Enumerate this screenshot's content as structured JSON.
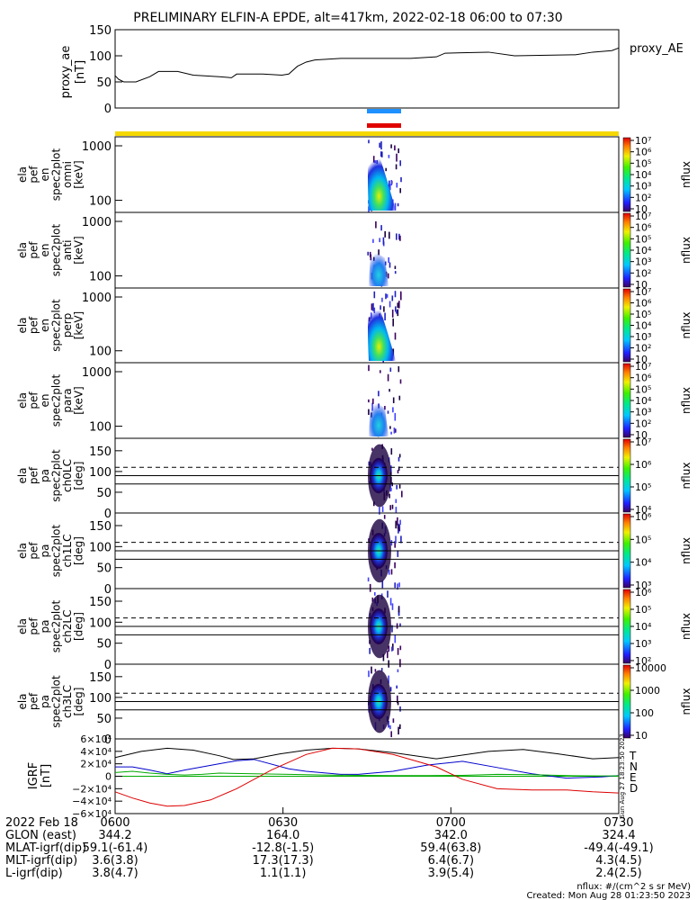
{
  "title": "PRELIMINARY ELFIN-A EPDE, alt=417km, 2022-02-18 06:00 to 07:30",
  "colors": {
    "ae_line": "#000000",
    "bar_blue": "#1e90ff",
    "bar_red": "#e00000",
    "bar_yellow": "#f5d800",
    "T": "#000000",
    "N": "#0000cc",
    "E": "#00aa00",
    "D": "#dd0000"
  },
  "chart_data": [
    {
      "type": "line",
      "panel": "proxy_ae",
      "ylabel_lines": [
        "proxy_ae",
        "[nT]"
      ],
      "legend": "proxy_AE",
      "ylim": [
        0,
        150
      ],
      "yticks": [
        "0",
        "50",
        "100",
        "150"
      ],
      "series": [
        {
          "name": "proxy_AE",
          "points": [
            [
              0,
              62
            ],
            [
              2,
              55
            ],
            [
              5,
              50
            ],
            [
              12,
              50
            ],
            [
              20,
              60
            ],
            [
              25,
              70
            ],
            [
              36,
              70
            ],
            [
              45,
              63
            ],
            [
              60,
              60
            ],
            [
              67,
              58
            ],
            [
              70,
              65
            ],
            [
              85,
              65
            ],
            [
              96,
              63
            ],
            [
              100,
              65
            ],
            [
              105,
              80
            ],
            [
              110,
              88
            ],
            [
              115,
              92
            ],
            [
              130,
              95
            ],
            [
              170,
              95
            ],
            [
              185,
              98
            ],
            [
              190,
              105
            ],
            [
              215,
              107
            ],
            [
              230,
              100
            ],
            [
              265,
              102
            ],
            [
              275,
              107
            ],
            [
              286,
              110
            ],
            [
              290,
              115
            ]
          ]
        }
      ]
    },
    {
      "type": "heatmap",
      "panel": "omni",
      "ylabel_lines": [
        "ela",
        "pef",
        "en",
        "spec2plot",
        "omni",
        "[keV]"
      ],
      "yscale": "log",
      "ylim": [
        60,
        1000
      ],
      "yticks": [
        "100",
        "1000"
      ],
      "zlabel": "nflux",
      "zticks": [
        "10",
        "10²",
        "10³",
        "10⁴",
        "10⁵",
        "10⁶",
        "10⁷"
      ]
    },
    {
      "type": "heatmap",
      "panel": "anti",
      "ylabel_lines": [
        "ela",
        "pef",
        "en",
        "spec2plot",
        "anti",
        "[keV]"
      ],
      "yscale": "log",
      "ylim": [
        60,
        1000
      ],
      "yticks": [
        "100",
        "1000"
      ],
      "zlabel": "nflux",
      "zticks": [
        "10",
        "10²",
        "10³",
        "10⁴",
        "10⁵",
        "10⁶",
        "10⁷"
      ]
    },
    {
      "type": "heatmap",
      "panel": "perp",
      "ylabel_lines": [
        "ela",
        "pef",
        "en",
        "spec2plot",
        "perp",
        "[keV]"
      ],
      "yscale": "log",
      "ylim": [
        60,
        1000
      ],
      "yticks": [
        "100",
        "1000"
      ],
      "zlabel": "nflux",
      "zticks": [
        "10",
        "10²",
        "10³",
        "10⁴",
        "10⁵",
        "10⁶",
        "10⁷"
      ]
    },
    {
      "type": "heatmap",
      "panel": "para",
      "ylabel_lines": [
        "ela",
        "pef",
        "en",
        "spec2plot",
        "para",
        "[keV]"
      ],
      "yscale": "log",
      "ylim": [
        60,
        1000
      ],
      "yticks": [
        "100",
        "1000"
      ],
      "zlabel": "nflux",
      "zticks": [
        "10",
        "10²",
        "10³",
        "10⁴",
        "10⁵",
        "10⁶",
        "10⁷"
      ]
    },
    {
      "type": "heatmap",
      "panel": "ch0LC",
      "ylabel_lines": [
        "ela",
        "pef",
        "pa",
        "spec2plot",
        "ch0LC",
        "[deg]"
      ],
      "yscale": "linear",
      "ylim": [
        0,
        180
      ],
      "yticks": [
        "0",
        "50",
        "100",
        "150"
      ],
      "hlines_solid": [
        70,
        90
      ],
      "hlines_dashed": [
        110
      ],
      "zlabel": "nflux",
      "zticks": [
        "10⁴",
        "10⁵",
        "10⁶",
        "10⁷"
      ]
    },
    {
      "type": "heatmap",
      "panel": "ch1LC",
      "ylabel_lines": [
        "ela",
        "pef",
        "pa",
        "spec2plot",
        "ch1LC",
        "[deg]"
      ],
      "yscale": "linear",
      "ylim": [
        0,
        180
      ],
      "yticks": [
        "0",
        "50",
        "100",
        "150"
      ],
      "hlines_solid": [
        70,
        90
      ],
      "hlines_dashed": [
        110
      ],
      "zlabel": "nflux",
      "zticks": [
        "10³",
        "10⁴",
        "10⁵",
        "10⁶"
      ]
    },
    {
      "type": "heatmap",
      "panel": "ch2LC",
      "ylabel_lines": [
        "ela",
        "pef",
        "pa",
        "spec2plot",
        "ch2LC",
        "[deg]"
      ],
      "yscale": "linear",
      "ylim": [
        0,
        180
      ],
      "yticks": [
        "0",
        "50",
        "100",
        "150"
      ],
      "hlines_solid": [
        70,
        90
      ],
      "hlines_dashed": [
        110
      ],
      "zlabel": "nflux",
      "zticks": [
        "10²",
        "10³",
        "10⁴",
        "10⁵",
        "10⁶"
      ]
    },
    {
      "type": "heatmap",
      "panel": "ch3LC",
      "ylabel_lines": [
        "ela",
        "pef",
        "pa",
        "spec2plot",
        "ch3LC",
        "[deg]"
      ],
      "yscale": "linear",
      "ylim": [
        0,
        180
      ],
      "yticks": [
        "0",
        "50",
        "100",
        "150"
      ],
      "hlines_solid": [
        70,
        90
      ],
      "hlines_dashed": [
        110
      ],
      "zlabel": "nflux",
      "zticks": [
        "10",
        "100",
        "1000",
        "10000"
      ]
    },
    {
      "type": "line",
      "panel": "igrf",
      "ylabel_lines": [
        "IGRF",
        "[nT]"
      ],
      "ylim": [
        -60000,
        60000
      ],
      "yticks": [
        "6×10⁴",
        "4×10⁴",
        "2×10⁴",
        "0",
        "−2×10⁴",
        "−4×10⁴",
        "−6×10⁴"
      ],
      "side_label": "Sun Aug 27 18:23:50 2023",
      "series": [
        {
          "name": "T",
          "points": [
            [
              0,
              30000
            ],
            [
              15,
              40000
            ],
            [
              30,
              45000
            ],
            [
              45,
              42000
            ],
            [
              60,
              33000
            ],
            [
              68,
              27000
            ],
            [
              80,
              28000
            ],
            [
              95,
              36000
            ],
            [
              110,
              42000
            ],
            [
              125,
              45000
            ],
            [
              140,
              44000
            ],
            [
              160,
              38000
            ],
            [
              185,
              28000
            ],
            [
              215,
              40000
            ],
            [
              235,
              43000
            ],
            [
              255,
              36000
            ],
            [
              275,
              28000
            ],
            [
              290,
              30000
            ]
          ]
        },
        {
          "name": "N",
          "points": [
            [
              0,
              15000
            ],
            [
              10,
              15000
            ],
            [
              20,
              10000
            ],
            [
              30,
              4000
            ],
            [
              40,
              10000
            ],
            [
              50,
              15000
            ],
            [
              60,
              20000
            ],
            [
              70,
              25000
            ],
            [
              80,
              27000
            ],
            [
              100,
              12000
            ],
            [
              110,
              8000
            ],
            [
              130,
              3000
            ],
            [
              140,
              3000
            ],
            [
              160,
              8000
            ],
            [
              180,
              18000
            ],
            [
              200,
              24000
            ],
            [
              220,
              14000
            ],
            [
              240,
              4000
            ],
            [
              260,
              -3000
            ],
            [
              280,
              -1000
            ],
            [
              290,
              1000
            ]
          ]
        },
        {
          "name": "E",
          "points": [
            [
              0,
              6000
            ],
            [
              10,
              8000
            ],
            [
              20,
              5000
            ],
            [
              30,
              3000
            ],
            [
              40,
              2000
            ],
            [
              50,
              3000
            ],
            [
              60,
              5000
            ],
            [
              80,
              4000
            ],
            [
              100,
              3000
            ],
            [
              120,
              2000
            ],
            [
              140,
              1500
            ],
            [
              160,
              1000
            ],
            [
              180,
              1000
            ],
            [
              200,
              1500
            ],
            [
              220,
              3000
            ],
            [
              240,
              2500
            ],
            [
              260,
              1000
            ],
            [
              280,
              500
            ],
            [
              290,
              500
            ]
          ]
        },
        {
          "name": "D",
          "points": [
            [
              0,
              -25000
            ],
            [
              10,
              -35000
            ],
            [
              20,
              -43000
            ],
            [
              30,
              -48000
            ],
            [
              40,
              -47000
            ],
            [
              55,
              -38000
            ],
            [
              70,
              -20000
            ],
            [
              90,
              10000
            ],
            [
              110,
              35000
            ],
            [
              125,
              45000
            ],
            [
              140,
              44000
            ],
            [
              160,
              35000
            ],
            [
              185,
              15000
            ],
            [
              200,
              -5000
            ],
            [
              220,
              -20000
            ],
            [
              240,
              -22000
            ],
            [
              260,
              -22000
            ],
            [
              275,
              -25000
            ],
            [
              290,
              -27000
            ]
          ]
        }
      ]
    }
  ],
  "axis_table": {
    "date": "2022 Feb 18",
    "ticks": [
      "0600",
      "0630",
      "0700",
      "0730"
    ],
    "rows": [
      {
        "label": "GLON (east)",
        "values": [
          "344.2",
          "164.0",
          "342.0",
          "324.4"
        ]
      },
      {
        "label": "MLAT-igrf(dip)",
        "values": [
          "59.1(-61.4)",
          "-12.8(-1.5)",
          "59.4(63.8)",
          "-49.4(-49.1)"
        ]
      },
      {
        "label": "MLT-igrf(dip)",
        "values": [
          "3.6(3.8)",
          "17.3(17.3)",
          "6.4(6.7)",
          "4.3(4.5)"
        ]
      },
      {
        "label": "L-igrf(dip)",
        "values": [
          "3.8(4.7)",
          "1.1(1.1)",
          "3.9(5.4)",
          "2.4(2.5)"
        ]
      }
    ]
  },
  "footer": {
    "units": "nflux: #/(cm^2 s sr MeV)",
    "created": "Created: Mon Aug 28 01:23:50 2023"
  }
}
